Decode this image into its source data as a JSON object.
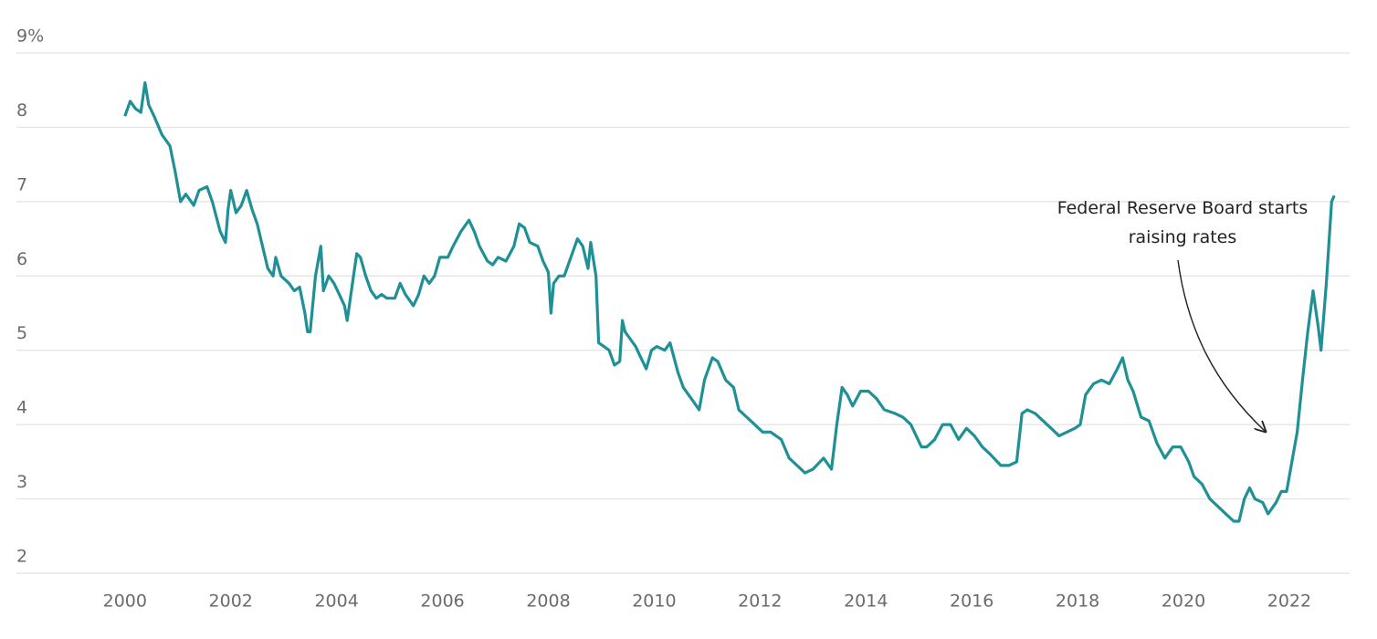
{
  "chart_data": {
    "type": "line",
    "color": "#1f9096",
    "xlim": [
      1997.95,
      2023.14
    ],
    "xticks": [
      2000,
      2002,
      2004,
      2006,
      2008,
      2010,
      2012,
      2014,
      2016,
      2018,
      2020,
      2022
    ],
    "ylim": [
      2,
      9
    ],
    "yticks": [
      2,
      3,
      4,
      5,
      6,
      7,
      8,
      {
        "value": 9,
        "label": "9%"
      }
    ],
    "grid": true,
    "annotation": {
      "lines": [
        "Federal Reserve Board starts",
        "raising rates"
      ]
    },
    "x": [
      2000.0,
      2000.1,
      2000.2,
      2000.3,
      2000.38,
      2000.45,
      2000.55,
      2000.7,
      2000.85,
      2000.95,
      2001.05,
      2001.15,
      2001.3,
      2001.4,
      2001.55,
      2001.65,
      2001.8,
      2001.9,
      2001.95,
      2002.0,
      2002.1,
      2002.2,
      2002.3,
      2002.4,
      2002.5,
      2002.6,
      2002.7,
      2002.8,
      2002.85,
      2002.95,
      2003.1,
      2003.2,
      2003.3,
      2003.4,
      2003.45,
      2003.5,
      2003.6,
      2003.7,
      2003.75,
      2003.85,
      2003.95,
      2004.05,
      2004.15,
      2004.2,
      2004.3,
      2004.38,
      2004.45,
      2004.55,
      2004.65,
      2004.75,
      2004.85,
      2004.95,
      2005.1,
      2005.2,
      2005.3,
      2005.45,
      2005.55,
      2005.65,
      2005.75,
      2005.85,
      2005.95,
      2006.1,
      2006.2,
      2006.35,
      2006.5,
      2006.6,
      2006.7,
      2006.85,
      2006.95,
      2007.05,
      2007.2,
      2007.35,
      2007.45,
      2007.55,
      2007.65,
      2007.8,
      2007.9,
      2008.0,
      2008.05,
      2008.1,
      2008.2,
      2008.3,
      2008.45,
      2008.55,
      2008.65,
      2008.75,
      2008.8,
      2008.9,
      2008.95,
      2009.05,
      2009.15,
      2009.25,
      2009.35,
      2009.4,
      2009.45,
      2009.55,
      2009.65,
      2009.75,
      2009.85,
      2009.95,
      2010.05,
      2010.2,
      2010.3,
      2010.45,
      2010.55,
      2010.7,
      2010.85,
      2010.95,
      2011.1,
      2011.2,
      2011.35,
      2011.5,
      2011.6,
      2011.75,
      2011.9,
      2012.05,
      2012.2,
      2012.4,
      2012.55,
      2012.7,
      2012.85,
      2013.0,
      2013.2,
      2013.35,
      2013.45,
      2013.55,
      2013.65,
      2013.75,
      2013.9,
      2014.05,
      2014.2,
      2014.35,
      2014.55,
      2014.7,
      2014.85,
      2015.05,
      2015.15,
      2015.3,
      2015.45,
      2015.6,
      2015.75,
      2015.9,
      2016.05,
      2016.2,
      2016.35,
      2016.55,
      2016.7,
      2016.85,
      2016.95,
      2017.05,
      2017.2,
      2017.35,
      2017.5,
      2017.65,
      2017.8,
      2017.95,
      2018.05,
      2018.15,
      2018.3,
      2018.45,
      2018.6,
      2018.75,
      2018.85,
      2018.95,
      2019.05,
      2019.2,
      2019.35,
      2019.5,
      2019.65,
      2019.8,
      2019.95,
      2020.1,
      2020.2,
      2020.35,
      2020.5,
      2020.65,
      2020.8,
      2020.95,
      2021.05,
      2021.15,
      2021.25,
      2021.35,
      2021.5,
      2021.6,
      2021.75,
      2021.85,
      2021.95,
      2022.05,
      2022.15,
      2022.25,
      2022.35,
      2022.45,
      2022.55,
      2022.6,
      2022.7,
      2022.8,
      2022.85
    ],
    "values": [
      8.15,
      8.35,
      8.25,
      8.2,
      8.6,
      8.3,
      8.15,
      7.9,
      7.75,
      7.4,
      7.0,
      7.1,
      6.95,
      7.15,
      7.2,
      7.0,
      6.6,
      6.45,
      6.9,
      7.15,
      6.85,
      6.95,
      7.15,
      6.9,
      6.7,
      6.4,
      6.1,
      6.0,
      6.25,
      6.0,
      5.9,
      5.8,
      5.85,
      5.5,
      5.25,
      5.25,
      6.0,
      6.4,
      5.8,
      6.0,
      5.9,
      5.75,
      5.6,
      5.4,
      5.9,
      6.3,
      6.25,
      6.0,
      5.8,
      5.7,
      5.75,
      5.7,
      5.7,
      5.9,
      5.75,
      5.6,
      5.75,
      6.0,
      5.9,
      6.0,
      6.25,
      6.25,
      6.4,
      6.6,
      6.75,
      6.6,
      6.4,
      6.2,
      6.15,
      6.25,
      6.2,
      6.4,
      6.7,
      6.65,
      6.45,
      6.4,
      6.2,
      6.05,
      5.5,
      5.9,
      6.0,
      6.0,
      6.3,
      6.5,
      6.4,
      6.1,
      6.45,
      6.0,
      5.1,
      5.05,
      5.0,
      4.8,
      4.85,
      5.4,
      5.25,
      5.15,
      5.05,
      4.9,
      4.75,
      5.0,
      5.05,
      5.0,
      5.1,
      4.7,
      4.5,
      4.35,
      4.2,
      4.6,
      4.9,
      4.85,
      4.6,
      4.5,
      4.2,
      4.1,
      4.0,
      3.9,
      3.9,
      3.8,
      3.55,
      3.45,
      3.35,
      3.4,
      3.55,
      3.4,
      4.0,
      4.5,
      4.4,
      4.25,
      4.45,
      4.45,
      4.35,
      4.2,
      4.15,
      4.1,
      4.0,
      3.7,
      3.7,
      3.8,
      4.0,
      4.0,
      3.8,
      3.95,
      3.85,
      3.7,
      3.6,
      3.45,
      3.45,
      3.5,
      4.15,
      4.2,
      4.15,
      4.05,
      3.95,
      3.85,
      3.9,
      3.95,
      4.0,
      4.4,
      4.55,
      4.6,
      4.55,
      4.75,
      4.9,
      4.6,
      4.45,
      4.1,
      4.05,
      3.75,
      3.55,
      3.7,
      3.7,
      3.5,
      3.3,
      3.2,
      3.0,
      2.9,
      2.8,
      2.7,
      2.7,
      3.0,
      3.15,
      3.0,
      2.95,
      2.8,
      2.95,
      3.1,
      3.1,
      3.5,
      3.9,
      4.6,
      5.25,
      5.8,
      5.3,
      5.0,
      5.9,
      7.0,
      7.08
    ]
  }
}
